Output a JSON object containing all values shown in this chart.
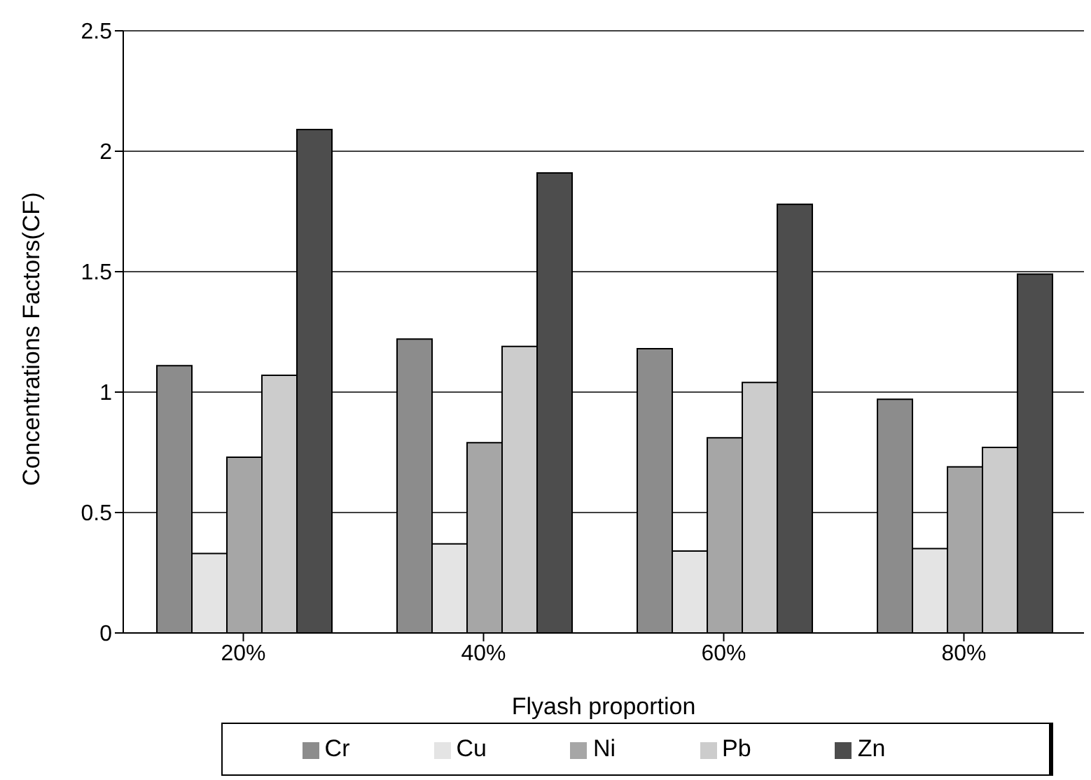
{
  "chart_data": {
    "type": "bar",
    "xlabel": "Flyash proportion",
    "ylabel": "Concentrations Factors(CF)",
    "categories": [
      "20%",
      "40%",
      "60%",
      "80%"
    ],
    "series": [
      {
        "name": "Cr",
        "color": "#8c8c8c",
        "values": [
          1.11,
          1.22,
          1.18,
          0.97
        ]
      },
      {
        "name": "Cu",
        "color": "#e4e4e4",
        "values": [
          0.33,
          0.37,
          0.34,
          0.35
        ]
      },
      {
        "name": "Ni",
        "color": "#a6a6a6",
        "values": [
          0.73,
          0.79,
          0.81,
          0.69
        ]
      },
      {
        "name": "Pb",
        "color": "#cccccc",
        "values": [
          1.07,
          1.19,
          1.04,
          0.77
        ]
      },
      {
        "name": "Zn",
        "color": "#4d4d4d",
        "values": [
          2.09,
          1.91,
          1.78,
          1.49
        ]
      }
    ],
    "ylim": [
      0,
      2.5
    ],
    "yticks": [
      0,
      0.5,
      1,
      1.5,
      2,
      2.5
    ],
    "grid": "y",
    "legend": "bottom"
  }
}
